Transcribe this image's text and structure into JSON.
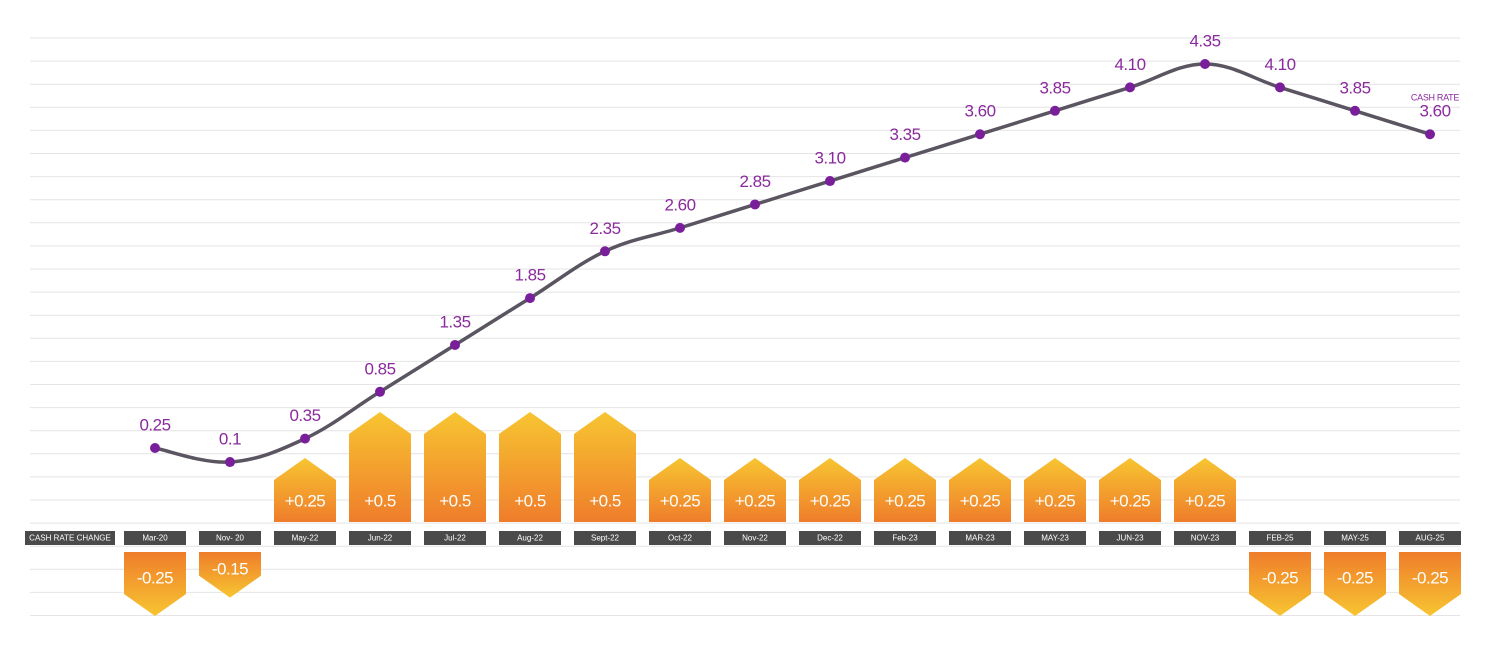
{
  "chart_data": {
    "type": "line",
    "categories": [
      "Mar-20",
      "Nov- 20",
      "May-22",
      "Jun-22",
      "Jul-22",
      "Aug-22",
      "Sept-22",
      "Oct-22",
      "Nov-22",
      "Dec-22",
      "Feb-23",
      "MAR-23",
      "MAY-23",
      "JUN-23",
      "NOV-23",
      "FEB-25",
      "MAY-25",
      "AUG-25"
    ],
    "series": [
      {
        "name": "CASH RATE",
        "color": "#5a5560",
        "marker_color": "#7a1f9a",
        "values": [
          0.25,
          0.1,
          0.35,
          0.85,
          1.35,
          1.85,
          2.35,
          2.6,
          2.85,
          3.1,
          3.35,
          3.6,
          3.85,
          4.1,
          4.35,
          4.1,
          3.85,
          3.6
        ],
        "value_labels": [
          "0.25",
          "0.1",
          "0.35",
          "0.85",
          "1.35",
          "1.85",
          "2.35",
          "2.60",
          "2.85",
          "3.10",
          "3.35",
          "3.60",
          "3.85",
          "4.10",
          "4.35",
          "4.10",
          "3.85",
          "3.60"
        ]
      },
      {
        "name": "CASH RATE CHANGE",
        "type": "bar",
        "color": "#f28a2c",
        "values": [
          -0.25,
          -0.15,
          0.25,
          0.5,
          0.5,
          0.5,
          0.5,
          0.25,
          0.25,
          0.25,
          0.25,
          0.25,
          0.25,
          0.25,
          0.25,
          -0.25,
          -0.25,
          -0.25
        ],
        "value_labels": [
          "-0.25",
          "-0.15",
          "+0.25",
          "+0.5",
          "+0.5",
          "+0.5",
          "+0.5",
          "+0.25",
          "+0.25",
          "+0.25",
          "+0.25",
          "+0.25",
          "+0.25",
          "+0.25",
          "+0.25",
          "-0.25",
          "-0.25",
          "-0.25"
        ]
      }
    ]
  }
}
